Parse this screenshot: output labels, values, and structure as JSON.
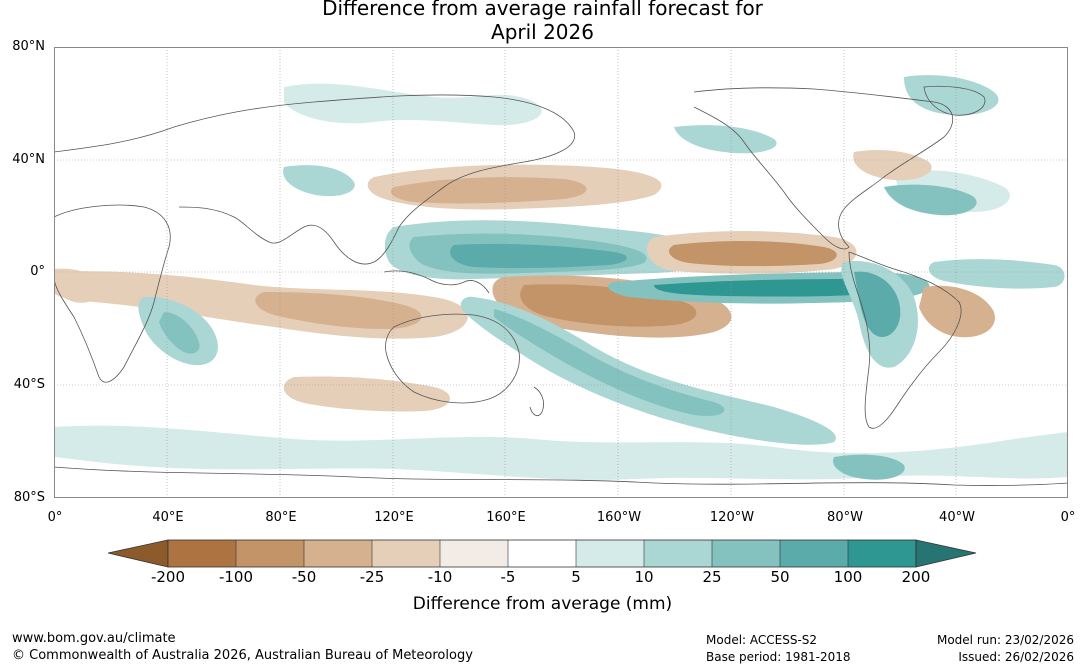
{
  "title": {
    "line1": "Difference from average rainfall forecast for",
    "line2": "April 2026"
  },
  "axes": {
    "lat_labels": [
      "80°N",
      "40°N",
      "0°",
      "40°S",
      "80°S"
    ],
    "lon_labels": [
      "0°",
      "40°E",
      "80°E",
      "120°E",
      "160°E",
      "160°W",
      "120°W",
      "80°W",
      "40°W",
      "0°"
    ]
  },
  "colorbar": {
    "title": "Difference from average (mm)",
    "tick_labels": [
      "-200",
      "-100",
      "-50",
      "-25",
      "-10",
      "-5",
      "5",
      "10",
      "25",
      "50",
      "100",
      "200"
    ],
    "colors": {
      "extend_low": "#8c5a2b",
      "c1": "#ad7441",
      "c2": "#c29467",
      "c3": "#d6b18f",
      "c4": "#e6cfb9",
      "c5": "#f2ebe6",
      "c6": "#ffffff",
      "c7": "#d5ebe9",
      "c8": "#aad6d4",
      "c9": "#84c2c0",
      "c10": "#5aabaa",
      "c11": "#2f9792",
      "extend_high": "#267572"
    }
  },
  "footer": {
    "website": "www.bom.gov.au/climate",
    "copyright": "© Commonwealth of Australia 2026, Australian Bureau of Meteorology",
    "model": "Model: ACCESS-S2",
    "base_period": "Base period: 1981-2018",
    "model_run": "Model run: 23/02/2026",
    "issued": "Issued: 26/02/2026"
  }
}
